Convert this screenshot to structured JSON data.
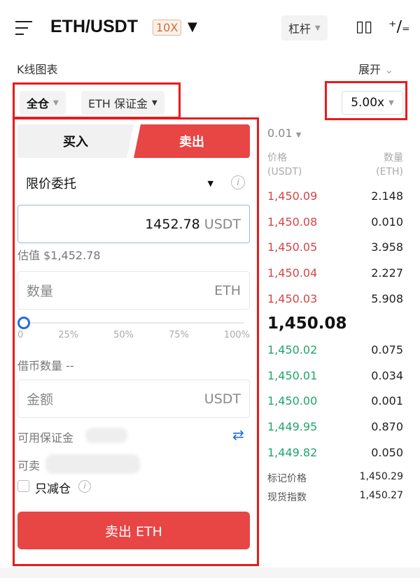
{
  "header": {
    "pair": "ETH/USDT",
    "leverage_badge": "10X",
    "mode": "杠杆"
  },
  "chart_bar": {
    "label": "K线图表",
    "expand": "展开"
  },
  "controls": {
    "margin_mode": "全仓",
    "margin_coin": "ETH 保证金",
    "leverage": "5.00x"
  },
  "order": {
    "buy_tab": "买入",
    "sell_tab": "卖出",
    "order_type": "限价委托",
    "price": "1452.78",
    "price_unit": "USDT",
    "estimate": "估值 $1,452.78",
    "qty_placeholder": "数量",
    "qty_unit": "ETH",
    "slider_marks": [
      "0",
      "25%",
      "50%",
      "75%",
      "100%"
    ],
    "slider_value_percent": 0,
    "borrow": "借币数量 --",
    "amount_placeholder": "金额",
    "amount_unit": "USDT",
    "avail_margin": "可用保证金",
    "can_sell": "可卖",
    "reduce_only": "只减仓",
    "submit": "卖出 ETH"
  },
  "orderbook": {
    "precision": "0.01",
    "price_header": "价格",
    "price_unit": "(USDT)",
    "qty_header": "数量",
    "qty_unit": "(ETH)",
    "asks": [
      [
        "1,450.09",
        "2.148"
      ],
      [
        "1,450.08",
        "0.010"
      ],
      [
        "1,450.05",
        "3.958"
      ],
      [
        "1,450.04",
        "2.227"
      ],
      [
        "1,450.03",
        "5.908"
      ]
    ],
    "last": "1,450.08",
    "bids": [
      [
        "1,450.02",
        "0.075"
      ],
      [
        "1,450.01",
        "0.034"
      ],
      [
        "1,450.00",
        "0.001"
      ],
      [
        "1,449.95",
        "0.870"
      ],
      [
        "1,449.82",
        "0.050"
      ]
    ],
    "mark_label": "标记价格",
    "mark": "1,450.29",
    "index_label": "现货指数",
    "index": "1,450.27"
  },
  "colors": {
    "sell": "#e84545",
    "buy": "#1fa56b",
    "highlight": "#e91b1b",
    "accent": "#1e6fd9"
  }
}
